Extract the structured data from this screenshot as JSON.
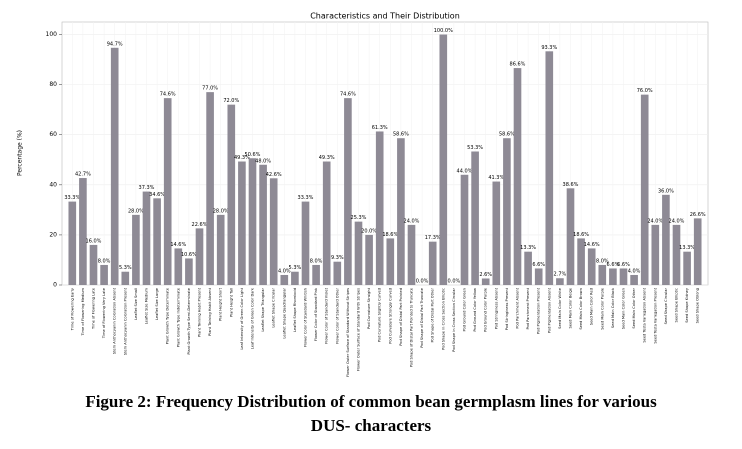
{
  "chart_data": {
    "type": "bar",
    "title": "Characteristics and Their Distribution",
    "y_label": "Percentage (%)",
    "categories": [
      "Time of Flowering Early",
      "Time of Flowering Medium",
      "Time of Flowering Late",
      "Time of Flowering Very Late",
      "Stem Anthocyanin Coloration Absent",
      "Stem Anthocyanin Coloration Present",
      "Leaflet Size Small",
      "Leaflet Size Medium",
      "Leaflet Size Large",
      "Plant Growth Type Determinate",
      "Plant Growth Type Indeterminate",
      "Plant Growth Type Semi-Determinate",
      "Plant Twining Habit Present",
      "Plant Twining Habit Absent",
      "Plant Height Short",
      "Plant Height Tall",
      "Leaf Intensity of Green Color Light",
      "Leaf Intensity of Green Color Dark",
      "Leaflet Shape Triangular",
      "Leaflet Shape Circular",
      "Leaflet Shape Quadrangular",
      "Leaflet Shape Rhomboid",
      "Flower Color of Standard Whitish",
      "Flower Color of Standard Pink",
      "Flower Color of Standard Violet",
      "Flower Color of Standard Other",
      "Flower Outer Surface of Standard Without Stripes",
      "Flower Outer Surface of Standard With Stripes",
      "Pod Curvature Straight",
      "Pod Curvature Slightly Curved",
      "Pod Curvature Strongly Curved",
      "Pod Shape of Distal Part Pointed",
      "Pod Shape of Distal Part Pointed to Truncate",
      "Pod Shape of Distal Part Truncate",
      "Pod Shape of Distal Part Other",
      "Pod Shape in Cross Section Elliptic",
      "Pod Shape in Cross Section Circular",
      "Pod Ground Color Green",
      "Pod Ground Color Yellow",
      "Pod Ground Color Purple",
      "Pod Stringiness Absent",
      "Pod Stringiness Present",
      "Pod Parchment Absent",
      "Pod Parchment Present",
      "Pod Pigmentation Present",
      "Pod Pigmentation Absent",
      "Seed Main Color White",
      "Seed Main Color Beige",
      "Seed Main Color Brown",
      "Seed Main Color Red",
      "Seed Main Color Purple",
      "Seed Main Color Black",
      "Seed Main Color Green",
      "Seed Main Color Other",
      "Seed Testa Variegation Absent",
      "Seed Testa Variegation Present",
      "Seed Shape Circular",
      "Seed Shape Elliptic",
      "Seed Shape Kidney",
      "Seed Shape Oblong"
    ],
    "values": [
      33.3,
      42.7,
      16.0,
      8.0,
      94.7,
      5.3,
      28.0,
      37.3,
      34.6,
      74.6,
      14.6,
      10.6,
      22.6,
      77.0,
      28.0,
      72.0,
      49.3,
      50.6,
      48.0,
      42.6,
      4.0,
      5.3,
      33.3,
      8.0,
      49.3,
      9.3,
      74.6,
      25.3,
      20.0,
      61.3,
      18.6,
      58.6,
      24.0,
      0.0,
      17.3,
      100.0,
      0.0,
      44.0,
      53.3,
      2.6,
      41.3,
      58.6,
      86.6,
      13.3,
      6.6,
      93.3,
      2.7,
      38.6,
      18.6,
      14.6,
      8.0,
      6.6,
      6.6,
      4.0,
      76.0,
      24.0,
      36.0,
      24.0,
      13.3,
      26.6
    ],
    "value_labels": [
      "33.3%",
      "42.7%",
      "16.0%",
      "8.0%",
      "94.7%",
      "5.3%",
      "28.0%",
      "37.3%",
      "34.6%",
      "74.6%",
      "14.6%",
      "10.6%",
      "22.6%",
      "77.0%",
      "28.0%",
      "72.0%",
      "49.3%",
      "50.6%",
      "48.0%",
      "42.6%",
      "4.0%",
      "5.3%",
      "33.3%",
      "8.0%",
      "49.3%",
      "9.3%",
      "74.6%",
      "25.3%",
      "20.0%",
      "61.3%",
      "18.6%",
      "58.6%",
      "24.0%",
      "0.0%",
      "17.3%",
      "100.0%",
      "0.0%",
      "44.0%",
      "53.3%",
      "2.6%",
      "41.3%",
      "58.6%",
      "86.6%",
      "13.3%",
      "6.6%",
      "93.3%",
      "2.7%",
      "38.6%",
      "18.6%",
      "14.6%",
      "8.0%",
      "6.6%",
      "6.6%",
      "4.0%",
      "76.0%",
      "24.0%",
      "36.0%",
      "24.0%",
      "13.3%",
      "26.6%"
    ],
    "color": "#8e8a95",
    "ylim": [
      0,
      105
    ],
    "yticks": [
      0,
      20,
      40,
      60,
      80,
      100
    ],
    "grid": true
  },
  "caption": [
    "Figure 2: Frequency Distribution of common bean germplasm lines for various",
    "DUS- characters"
  ]
}
